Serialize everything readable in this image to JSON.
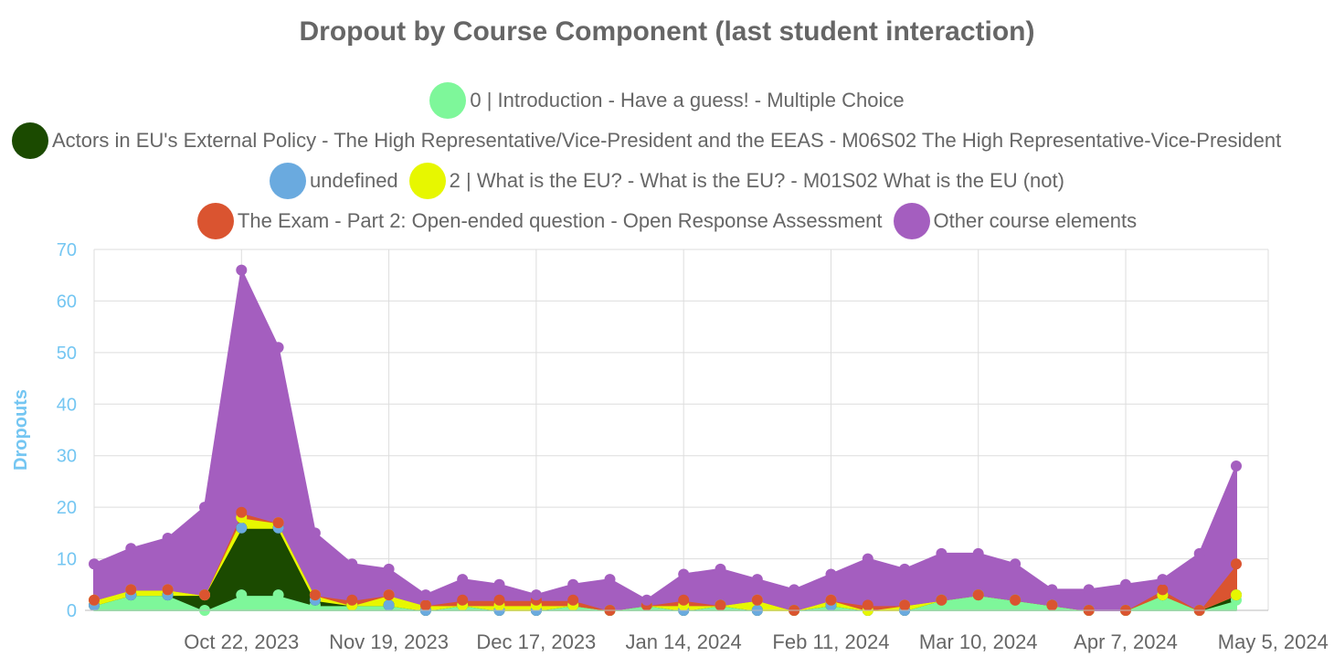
{
  "chart_data": {
    "type": "area",
    "stacked": true,
    "title": "Dropout by Course Component (last student interaction)",
    "ylabel": "Dropouts",
    "xlabel": "",
    "ylim": [
      0,
      70
    ],
    "yticks": [
      0,
      10,
      20,
      30,
      40,
      50,
      60,
      70
    ],
    "grid": true,
    "legend_position": "top",
    "x": [
      "2023-09-24",
      "2023-10-01",
      "2023-10-08",
      "2023-10-15",
      "2023-10-22",
      "2023-10-29",
      "2023-11-05",
      "2023-11-12",
      "2023-11-19",
      "2023-11-26",
      "2023-12-03",
      "2023-12-10",
      "2023-12-17",
      "2023-12-24",
      "2023-12-31",
      "2024-01-07",
      "2024-01-14",
      "2024-01-21",
      "2024-01-28",
      "2024-02-04",
      "2024-02-11",
      "2024-02-18",
      "2024-02-25",
      "2024-03-03",
      "2024-03-10",
      "2024-03-17",
      "2024-03-24",
      "2024-03-31",
      "2024-04-07",
      "2024-04-14",
      "2024-04-21",
      "2024-04-28"
    ],
    "x_tick_labels": [
      {
        "date": "2023-10-22",
        "label": "Oct 22, 2023"
      },
      {
        "date": "2023-11-19",
        "label": "Nov 19, 2023"
      },
      {
        "date": "2023-12-17",
        "label": "Dec 17, 2023"
      },
      {
        "date": "2024-01-14",
        "label": "Jan 14, 2024"
      },
      {
        "date": "2024-02-11",
        "label": "Feb 11, 2024"
      },
      {
        "date": "2024-03-10",
        "label": "Mar 10, 2024"
      },
      {
        "date": "2024-04-07",
        "label": "Apr 7, 2024"
      },
      {
        "date": "2024-05-05",
        "label": "May 5, 2024"
      }
    ],
    "series": [
      {
        "name": "0 | Introduction - Have a guess! - Multiple Choice",
        "color": "#7ef79a",
        "values": [
          1,
          3,
          3,
          0,
          3,
          3,
          1,
          1,
          1,
          0,
          1,
          0,
          0,
          1,
          0,
          1,
          0,
          1,
          0,
          0,
          1,
          0,
          0,
          2,
          3,
          2,
          1,
          0,
          0,
          3,
          0,
          2
        ]
      },
      {
        "name": "Actors in EU's External Policy - The High Representative/Vice-President and the EEAS - M06S02 The High Representative-Vice-President",
        "color": "#1b4a00",
        "values": [
          0,
          0,
          0,
          3,
          13,
          13,
          1,
          0,
          0,
          0,
          0,
          0,
          0,
          0,
          0,
          0,
          0,
          0,
          0,
          0,
          0,
          0,
          0,
          0,
          0,
          0,
          0,
          0,
          0,
          0,
          0,
          1
        ]
      },
      {
        "name": "undefined",
        "color": "#6aaadf",
        "values": [
          0,
          0,
          0,
          0,
          0,
          0,
          0,
          0,
          0,
          0,
          0,
          0,
          0,
          0,
          0,
          0,
          0,
          0,
          0,
          0,
          0,
          0,
          0,
          0,
          0,
          0,
          0,
          0,
          0,
          0,
          0,
          0
        ]
      },
      {
        "name": "2 | What is the EU? - What is the EU? - M01S02 What is the EU (not)",
        "color": "#e7f700",
        "values": [
          1,
          1,
          1,
          0,
          2,
          1,
          1,
          0,
          2,
          1,
          0,
          1,
          1,
          0,
          0,
          0,
          1,
          0,
          2,
          0,
          1,
          0,
          1,
          0,
          0,
          0,
          0,
          0,
          0,
          0,
          0,
          0
        ]
      },
      {
        "name": "The Exam - Part 2: Open-ended question - Open Response Assessment",
        "color": "#da5430",
        "values": [
          0,
          0,
          0,
          0,
          1,
          0,
          0,
          1,
          0,
          0,
          1,
          1,
          1,
          1,
          0,
          0,
          1,
          0,
          0,
          0,
          0,
          1,
          0,
          0,
          0,
          0,
          0,
          0,
          0,
          1,
          0,
          6
        ]
      },
      {
        "name": "Other course elements",
        "color": "#a45ebf",
        "values": [
          7,
          8,
          10,
          17,
          47,
          34,
          12,
          7,
          5,
          2,
          4,
          3,
          1,
          3,
          6,
          1,
          5,
          7,
          4,
          4,
          5,
          9,
          7,
          9,
          8,
          7,
          3,
          4,
          5,
          2,
          11,
          19
        ]
      }
    ],
    "legend_rows": [
      [
        0
      ],
      [
        1
      ],
      [
        2,
        3
      ],
      [
        4,
        5
      ]
    ]
  }
}
